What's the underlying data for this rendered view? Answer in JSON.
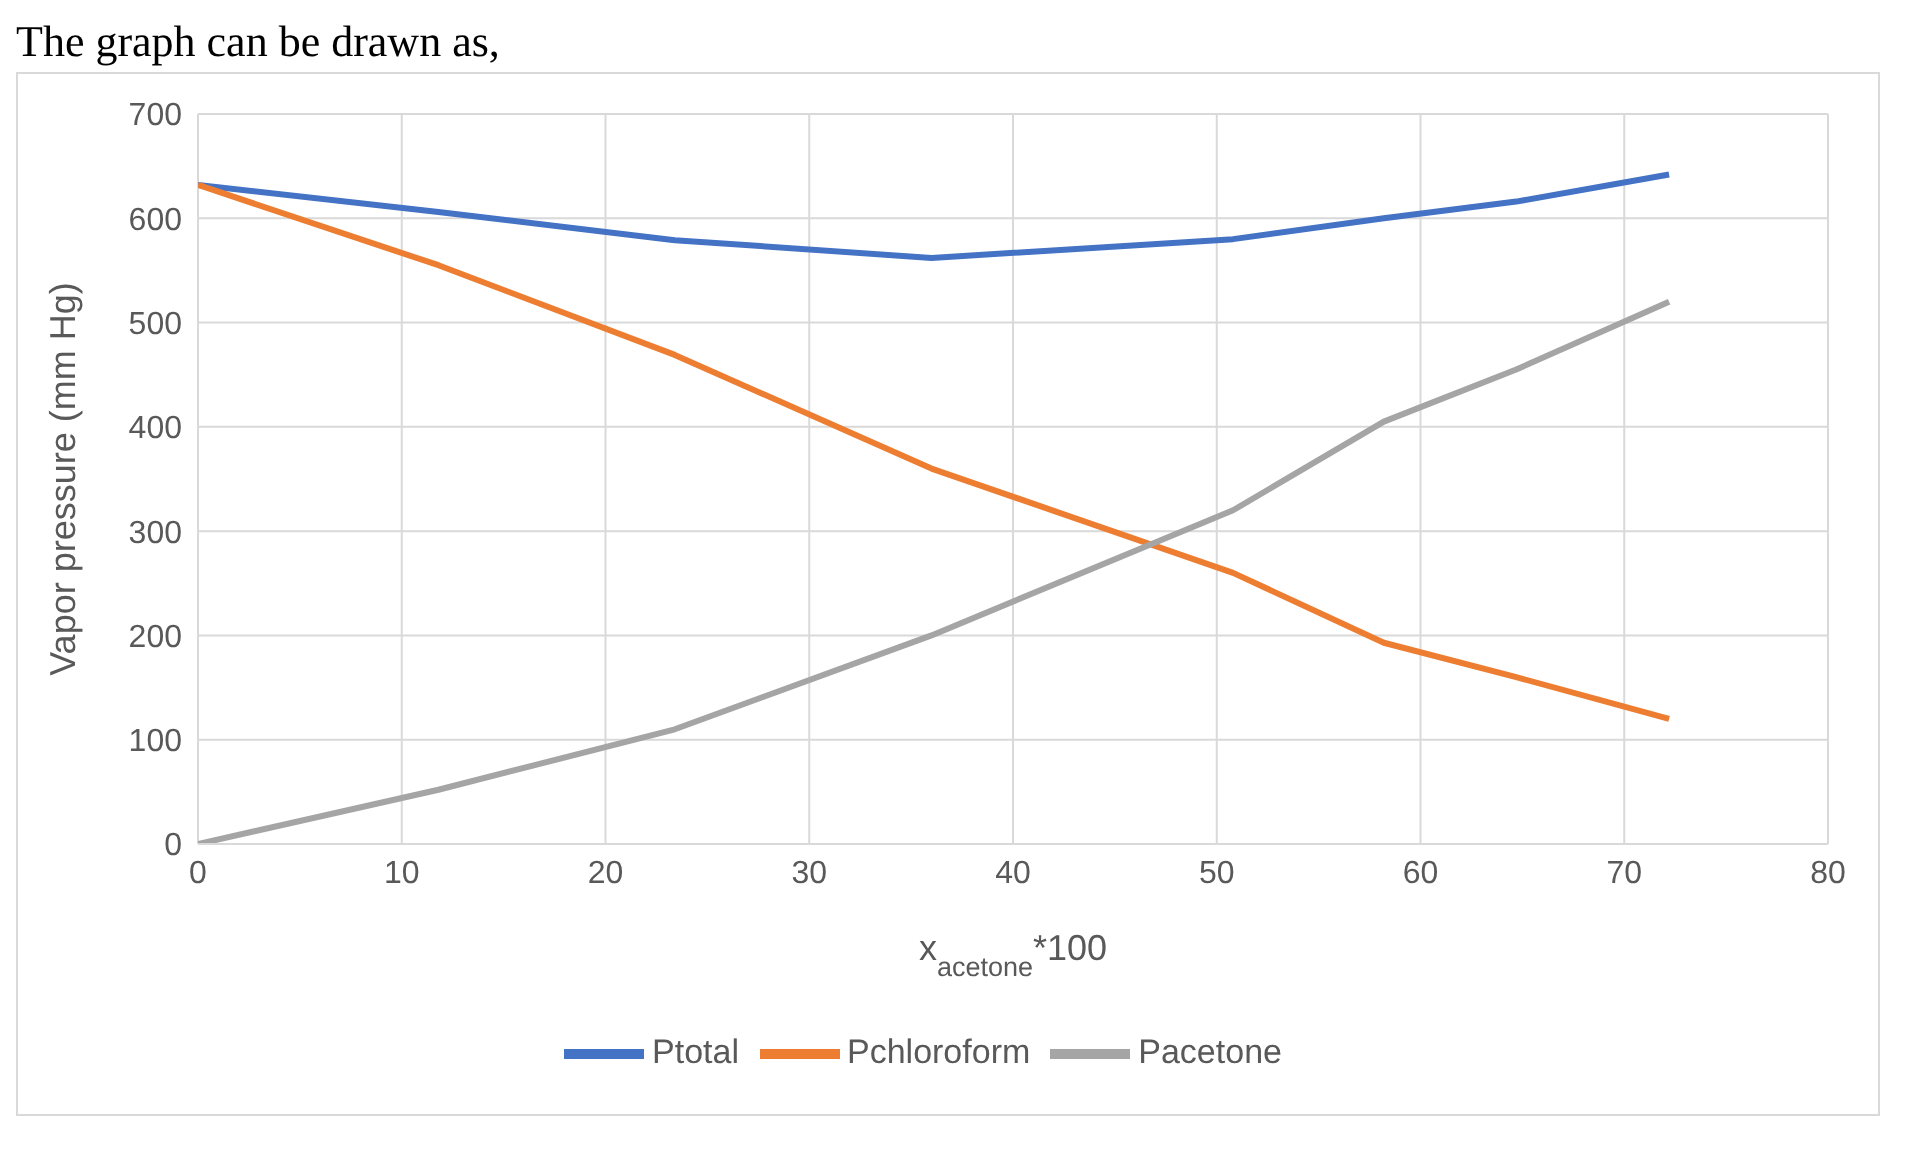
{
  "chart_data": {
    "type": "line",
    "xlabel": "x$_{acetone}$*100",
    "ylabel": "Vapor pressure (mm Hg)",
    "annotations": [
      "The graph can be drawn as,"
    ],
    "x": [
      0,
      11.8,
      23.4,
      36,
      50.8,
      58.2,
      64.7,
      72.2
    ],
    "series": [
      {
        "name": "Ptotal",
        "color": "#4472c4",
        "values": [
          632,
          606,
          579,
          562,
          580,
          600,
          616,
          642
        ]
      },
      {
        "name": "Pchloroform",
        "color": "#ed7d31",
        "values": [
          632,
          555,
          469,
          360,
          260,
          193,
          160,
          120
        ]
      },
      {
        "name": "Pacetone",
        "color": "#a5a5a5",
        "values": [
          0,
          52,
          110,
          200,
          320,
          405,
          455,
          520
        ]
      }
    ],
    "xlim": [
      0,
      80
    ],
    "xticks": [
      0,
      10,
      20,
      30,
      40,
      50,
      60,
      70,
      80
    ],
    "ylim": [
      0,
      700
    ],
    "yticks": [
      0,
      100,
      200,
      300,
      400,
      500,
      600,
      700
    ],
    "grid": true,
    "legend": "bottom",
    "marker": "none",
    "line_style": "solid"
  }
}
